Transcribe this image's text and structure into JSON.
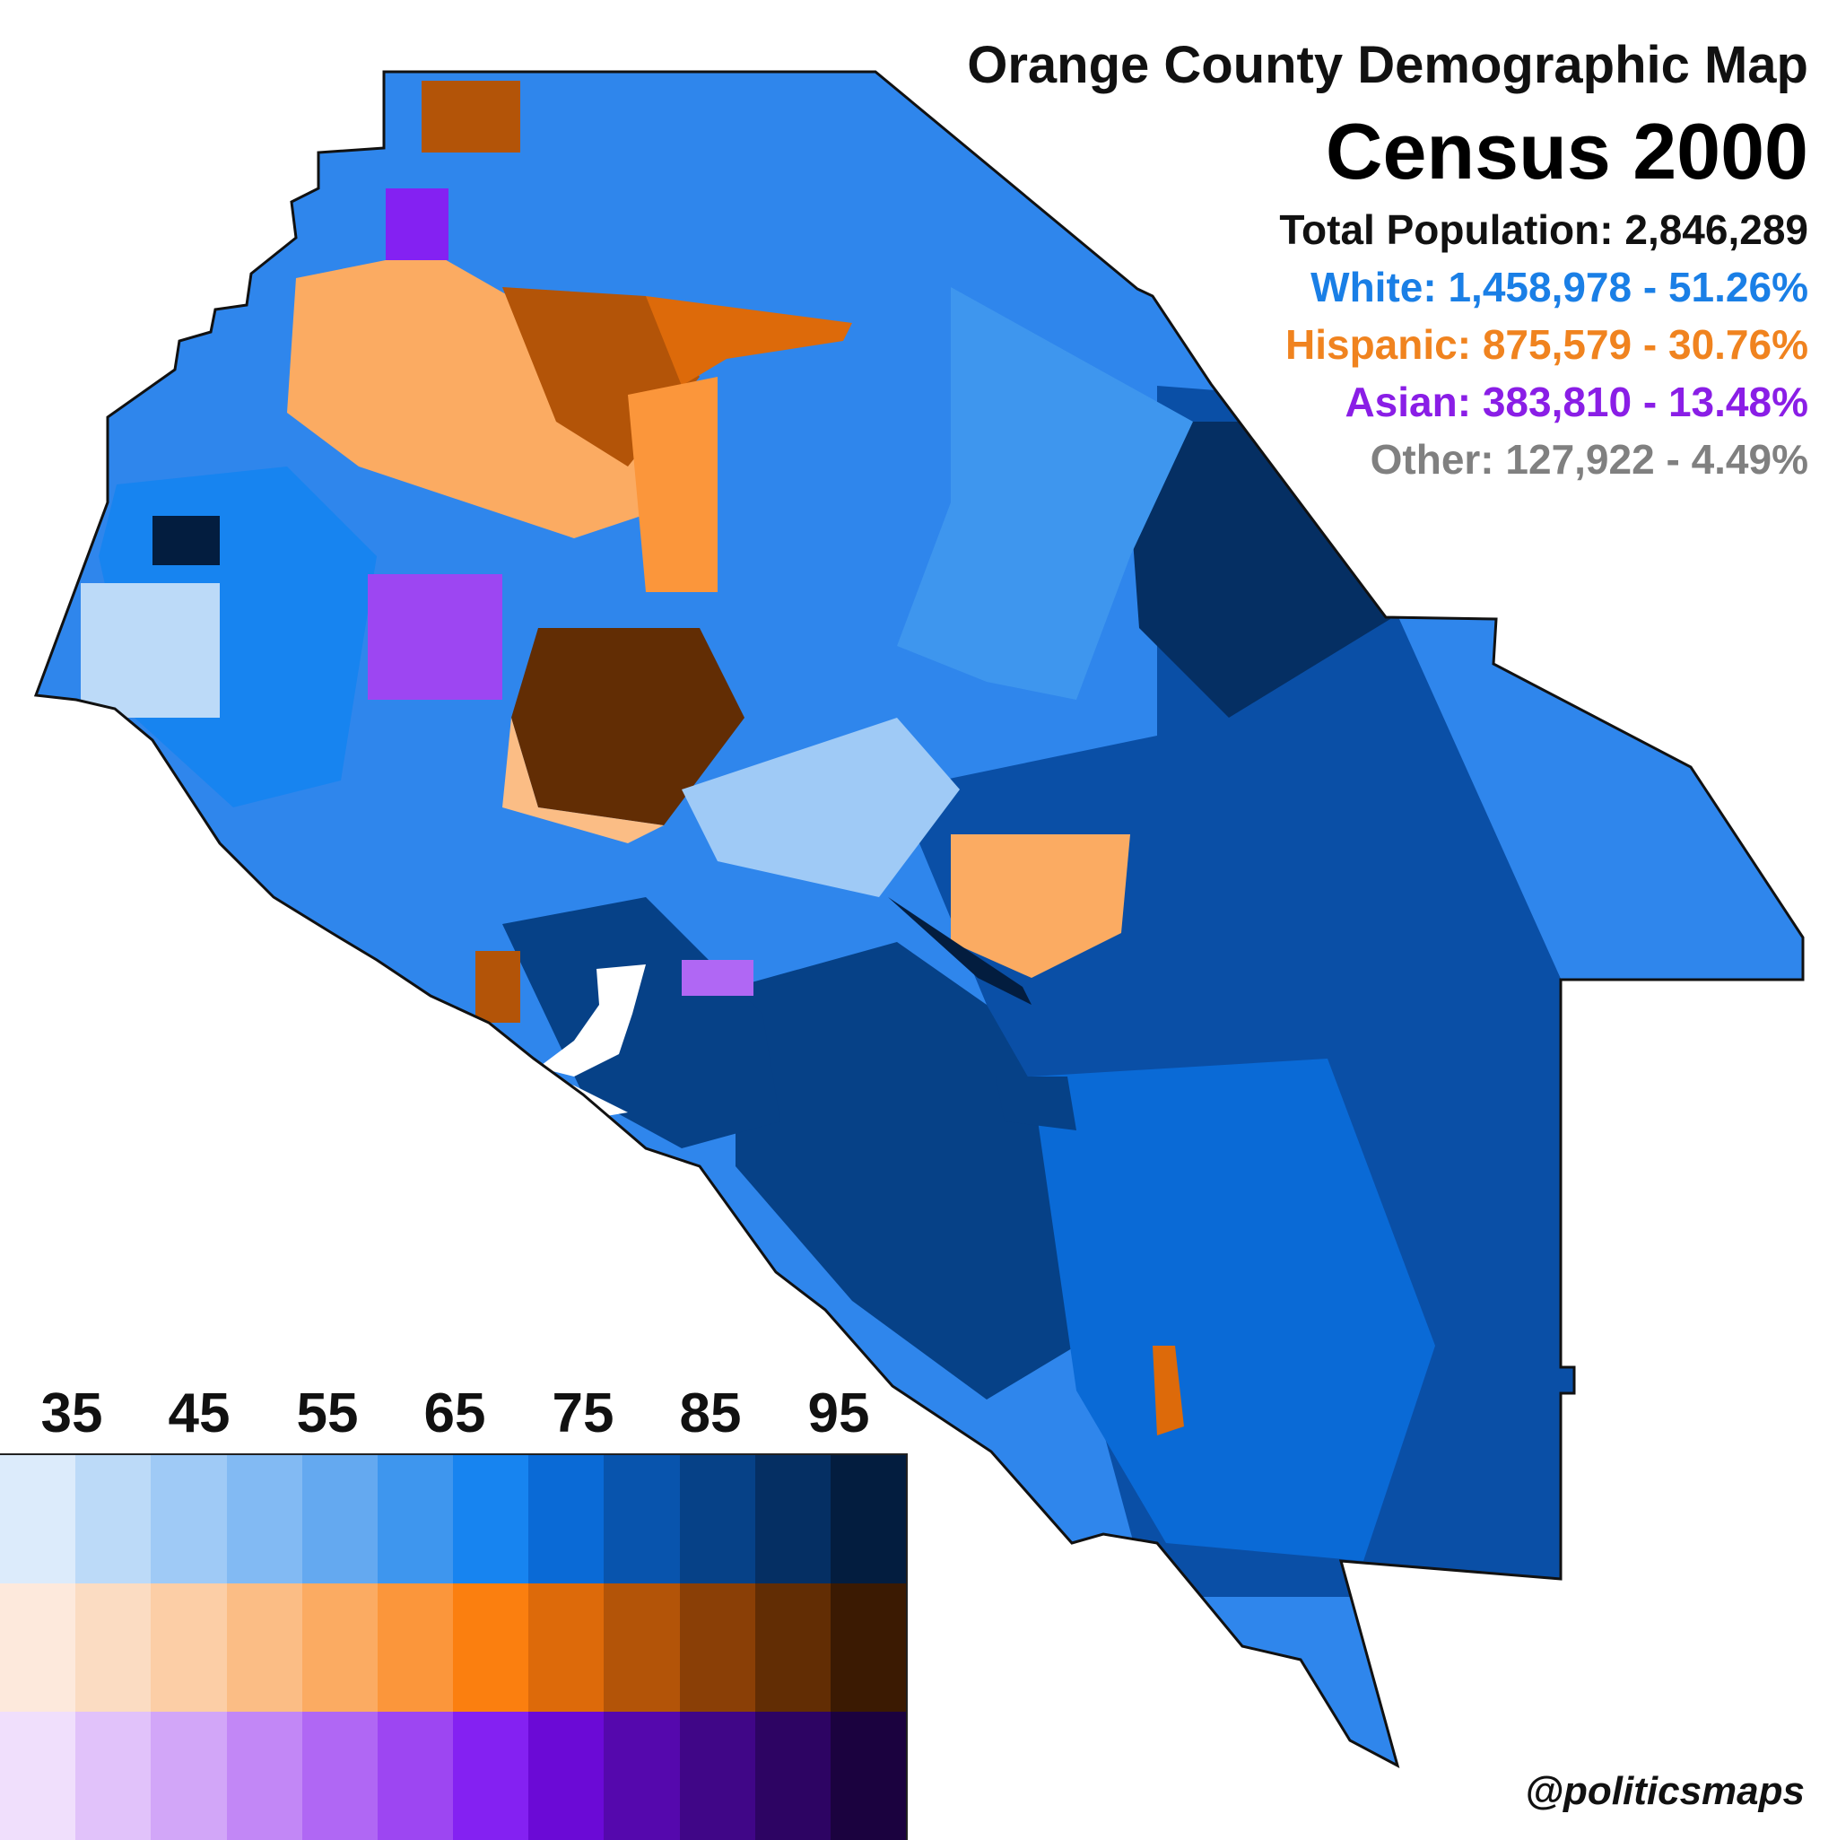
{
  "header": {
    "subtitle": "Orange County Demographic Map",
    "title": "Census 2000",
    "total": "Total Population: 2,846,289",
    "white": "White: 1,458,978 - 51.26%",
    "hispanic": "Hispanic: 875,579 - 30.76%",
    "asian": "Asian: 383,810 - 13.48%",
    "other": "Other: 127,922 - 4.49%"
  },
  "colors": {
    "white": "#1a7fe6",
    "hispanic": "#f0831f",
    "asian": "#8a1ee6",
    "other": "#808080"
  },
  "legend": {
    "ticks": [
      "35",
      "45",
      "55",
      "65",
      "75",
      "85",
      "95"
    ],
    "white_ramp": [
      "#dcebfb",
      "#bcdaf8",
      "#9fcaf6",
      "#82baf3",
      "#64a9f0",
      "#3e96ee",
      "#1784f0",
      "#0a6ad6",
      "#0854ad",
      "#064187",
      "#052f63",
      "#031d3f"
    ],
    "hispanic_ramp": [
      "#fde9dc",
      "#fbdcc2",
      "#fccea6",
      "#fbbd85",
      "#fbab62",
      "#fb963b",
      "#fb7f0f",
      "#dd6a0a",
      "#b35408",
      "#8a3f06",
      "#622d04",
      "#3b1a02"
    ],
    "asian_ramp": [
      "#f0dffc",
      "#e1c2fa",
      "#d2a6f8",
      "#c287f6",
      "#b067f4",
      "#9d46f2",
      "#8421f2",
      "#6b0ad6",
      "#5508ad",
      "#400687",
      "#2d0463",
      "#1b023f"
    ]
  },
  "credit": "@politicsmaps"
}
